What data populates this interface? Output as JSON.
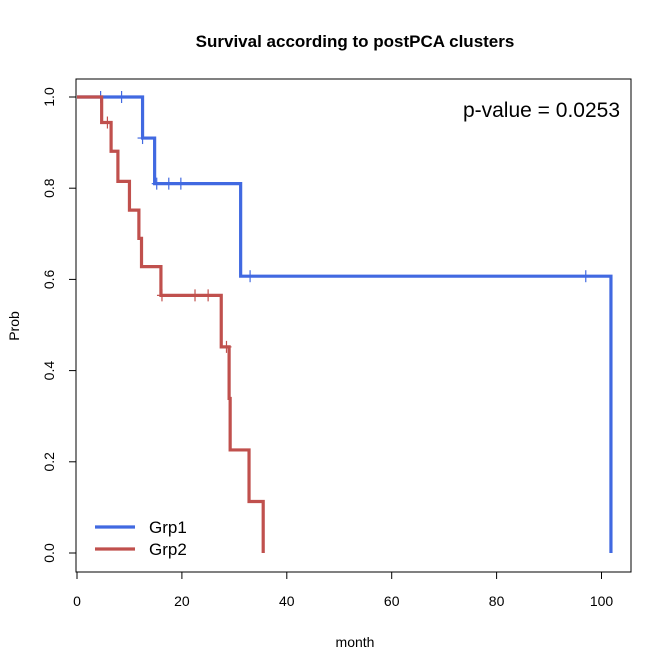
{
  "chart_data": {
    "type": "line",
    "title": "Survival according to postPCA clusters",
    "xlabel": "month",
    "ylabel": "Prob",
    "xlim": [
      0,
      105
    ],
    "ylim": [
      0,
      1
    ],
    "x_ticks": [
      0,
      20,
      40,
      60,
      80,
      100
    ],
    "y_ticks": [
      0.0,
      0.2,
      0.4,
      0.6,
      0.8,
      1.0
    ],
    "x_tick_labels": [
      "0",
      "20",
      "40",
      "60",
      "80",
      "100"
    ],
    "y_tick_labels": [
      "0.0",
      "0.2",
      "0.4",
      "0.6",
      "0.8",
      "1.0"
    ],
    "annotation": "p-value = 0.0253",
    "legend_position": "bottom-left",
    "series": [
      {
        "name": "Grp1",
        "color": "#4169E1",
        "steps": [
          [
            0,
            1.0
          ],
          [
            12.5,
            0.91
          ],
          [
            14.8,
            0.81
          ],
          [
            31.2,
            0.607
          ],
          [
            101.8,
            0.0
          ]
        ],
        "end_x": 101.8,
        "censored": [
          [
            4.5,
            1.0
          ],
          [
            8.5,
            1.0
          ],
          [
            12.5,
            0.91
          ],
          [
            15.2,
            0.81
          ],
          [
            17.5,
            0.81
          ],
          [
            19.8,
            0.81
          ],
          [
            33,
            0.607
          ],
          [
            97,
            0.607
          ]
        ]
      },
      {
        "name": "Grp2",
        "color": "#C0504D",
        "steps": [
          [
            0,
            1.0
          ],
          [
            4.7,
            0.944
          ],
          [
            6.5,
            0.881
          ],
          [
            7.8,
            0.815
          ],
          [
            10.0,
            0.752
          ],
          [
            11.8,
            0.69
          ],
          [
            12.3,
            0.628
          ],
          [
            16.0,
            0.565
          ],
          [
            27.5,
            0.452
          ],
          [
            29.0,
            0.339
          ],
          [
            29.2,
            0.226
          ],
          [
            32.8,
            0.113
          ],
          [
            35.5,
            0.0
          ]
        ],
        "end_x": 35.5,
        "censored": [
          [
            5.8,
            0.944
          ],
          [
            16.2,
            0.565
          ],
          [
            22.5,
            0.565
          ],
          [
            25.0,
            0.565
          ],
          [
            28.5,
            0.452
          ]
        ]
      }
    ]
  }
}
